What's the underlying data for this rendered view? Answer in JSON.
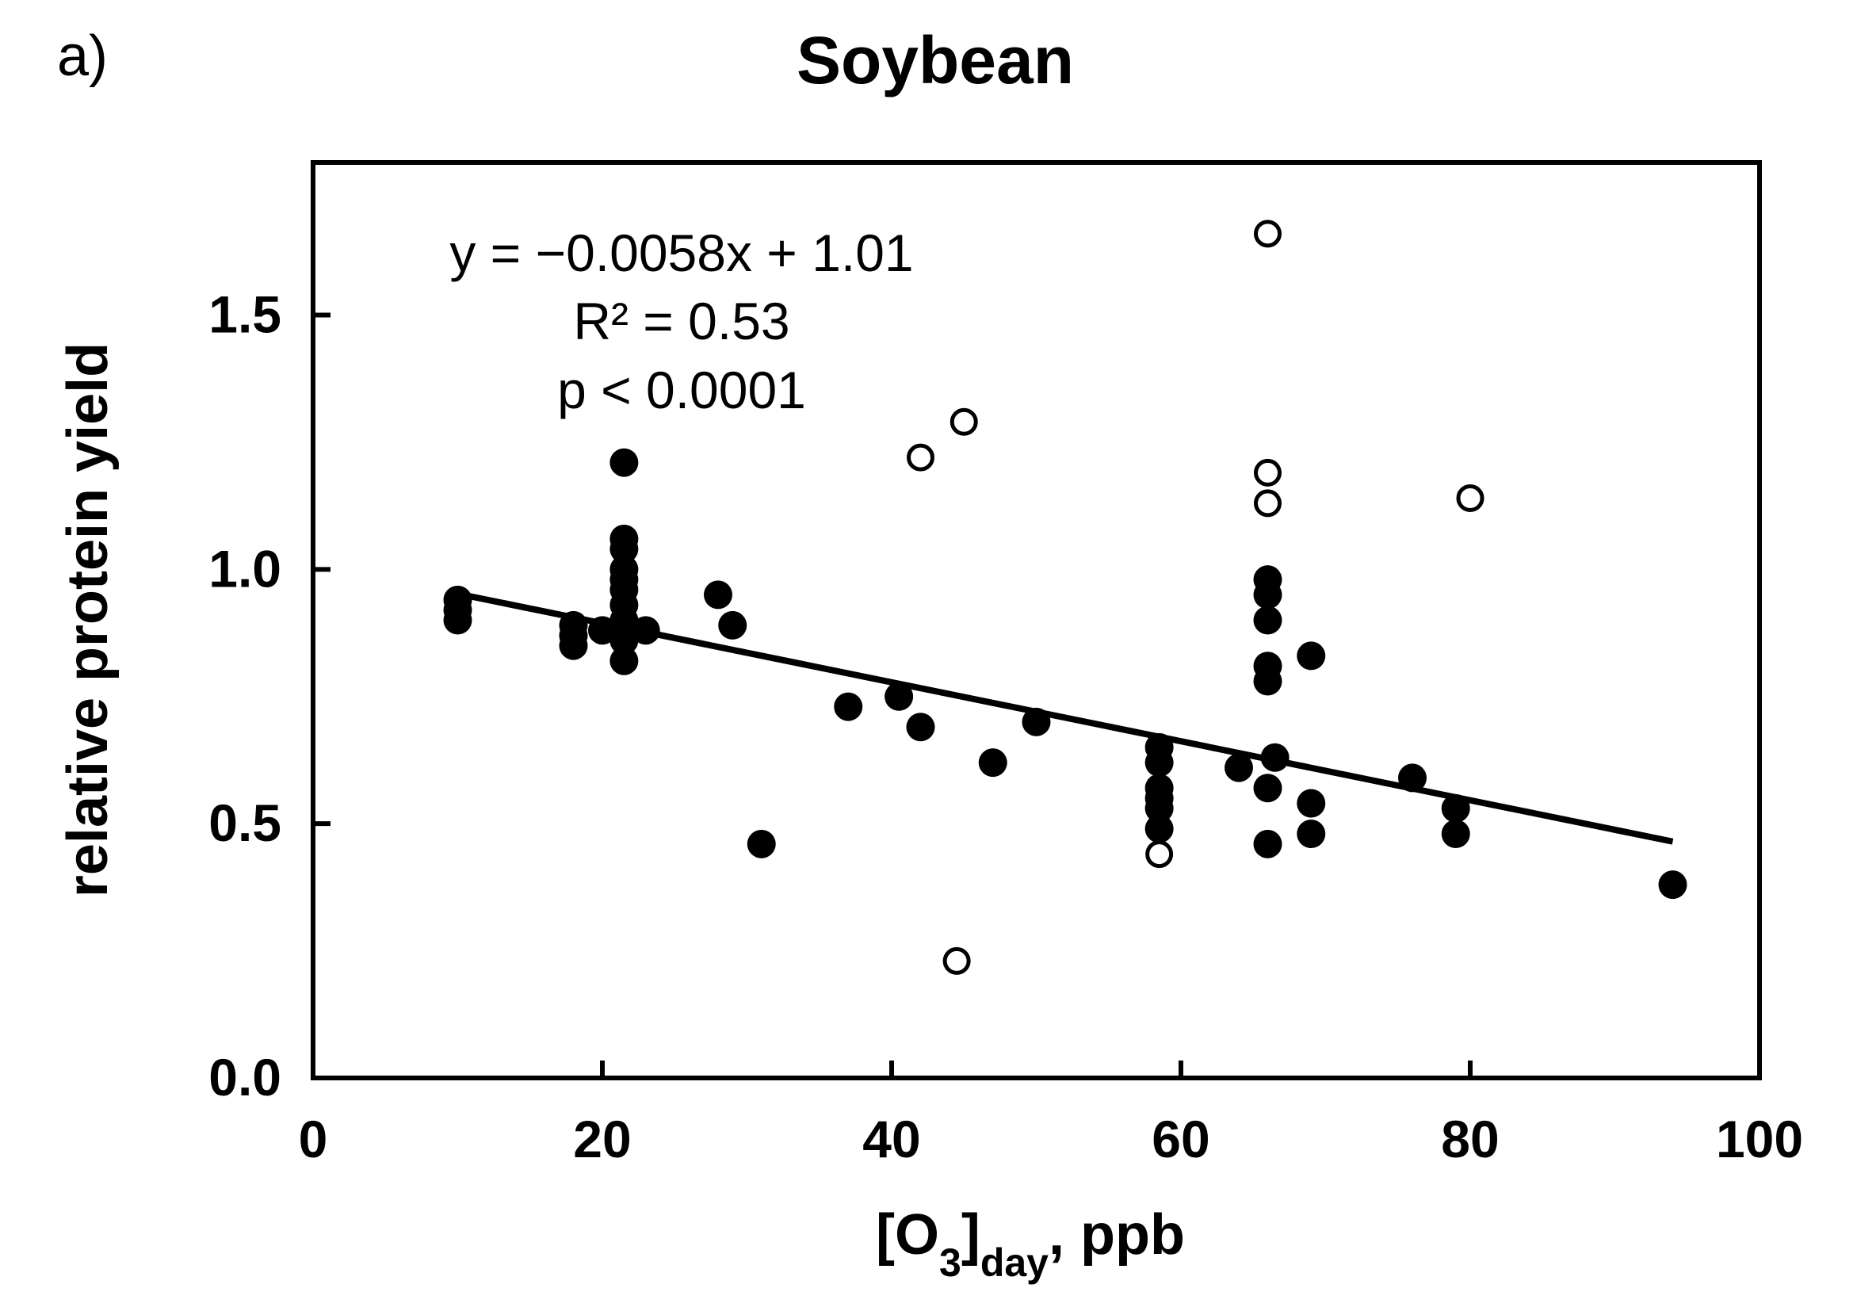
{
  "panel_label": "a)",
  "chart_data": {
    "type": "scatter",
    "title": "Soybean",
    "xlabel": {
      "main": "[O",
      "sub1": "3",
      "mid": "]",
      "sub2": "day",
      "tail": ", ppb"
    },
    "ylabel": "relative protein yield",
    "xlim": [
      0,
      100
    ],
    "ylim": [
      0,
      1.8
    ],
    "xticks": [
      "0",
      "20",
      "40",
      "60",
      "80",
      "100"
    ],
    "xtick_values": [
      0,
      20,
      40,
      60,
      80,
      100
    ],
    "yticks": [
      "0.0",
      "0.5",
      "1.0",
      "1.5"
    ],
    "ytick_values": [
      0,
      0.5,
      1.0,
      1.5
    ],
    "grid": false,
    "annotation": {
      "equation": "y = −0.0058x + 1.01",
      "r2": "R² = 0.53",
      "p": "p < 0.0001"
    },
    "regression": {
      "slope": -0.0058,
      "intercept": 1.01,
      "x_range": [
        10,
        94
      ]
    },
    "series": [
      {
        "marker": "filled",
        "points": [
          [
            10,
            0.94
          ],
          [
            10,
            0.92
          ],
          [
            10,
            0.9
          ],
          [
            18,
            0.89
          ],
          [
            18,
            0.87
          ],
          [
            18,
            0.85
          ],
          [
            20,
            0.88
          ],
          [
            21.5,
            1.21
          ],
          [
            21.5,
            1.06
          ],
          [
            21.5,
            1.04
          ],
          [
            21.5,
            1.0
          ],
          [
            21.5,
            0.98
          ],
          [
            21.5,
            0.96
          ],
          [
            21.5,
            0.93
          ],
          [
            21.5,
            0.9
          ],
          [
            21.5,
            0.86
          ],
          [
            21.5,
            0.82
          ],
          [
            23,
            0.88
          ],
          [
            28,
            0.95
          ],
          [
            29,
            0.89
          ],
          [
            31,
            0.46
          ],
          [
            37,
            0.73
          ],
          [
            40.5,
            0.75
          ],
          [
            42,
            0.69
          ],
          [
            47,
            0.62
          ],
          [
            50,
            0.7
          ],
          [
            58.5,
            0.65
          ],
          [
            58.5,
            0.62
          ],
          [
            58.5,
            0.57
          ],
          [
            58.5,
            0.55
          ],
          [
            58.5,
            0.53
          ],
          [
            58.5,
            0.49
          ],
          [
            64,
            0.61
          ],
          [
            66,
            0.98
          ],
          [
            66,
            0.95
          ],
          [
            66,
            0.9
          ],
          [
            66,
            0.81
          ],
          [
            66,
            0.78
          ],
          [
            66,
            0.57
          ],
          [
            66,
            0.46
          ],
          [
            66.5,
            0.63
          ],
          [
            69,
            0.83
          ],
          [
            69,
            0.54
          ],
          [
            69,
            0.48
          ],
          [
            76,
            0.59
          ],
          [
            79,
            0.53
          ],
          [
            79,
            0.48
          ],
          [
            94,
            0.38
          ]
        ]
      },
      {
        "marker": "open",
        "points": [
          [
            66,
            1.66
          ],
          [
            45,
            1.29
          ],
          [
            42,
            1.22
          ],
          [
            66,
            1.19
          ],
          [
            66,
            1.13
          ],
          [
            80,
            1.14
          ],
          [
            58.5,
            0.44
          ],
          [
            44.5,
            0.23
          ]
        ]
      }
    ]
  }
}
